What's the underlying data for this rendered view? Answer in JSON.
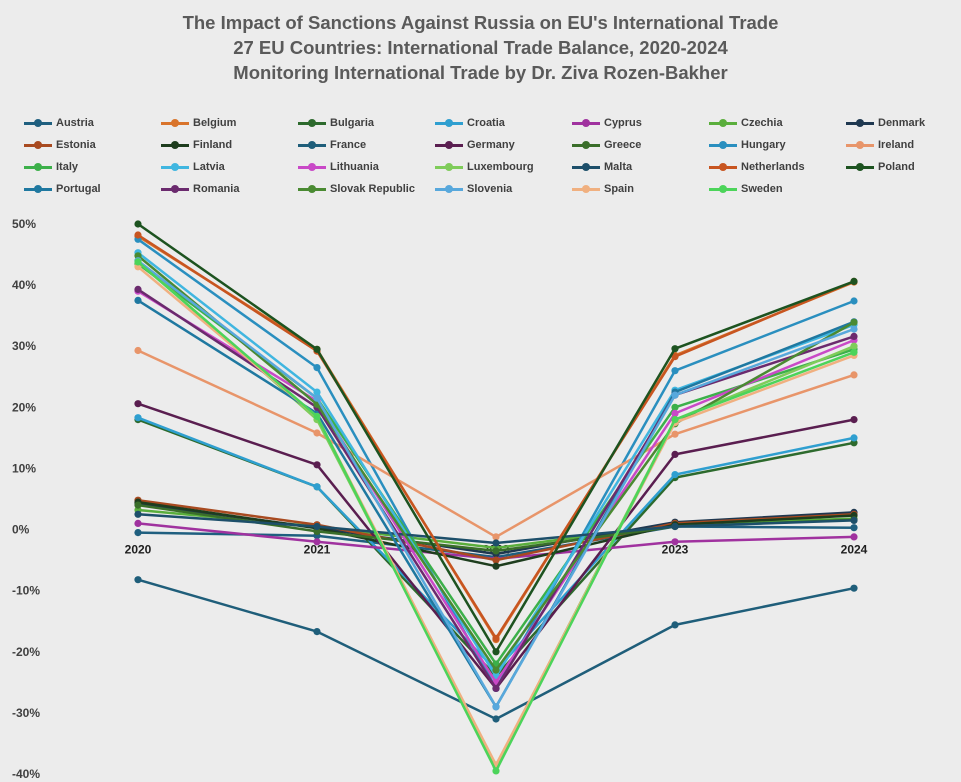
{
  "header": {
    "title_line1": "The Impact of Sanctions Against Russia on EU's International Trade",
    "title_line2": "27 EU Countries: International Trade Balance, 2020-2024",
    "title_line3": "Monitoring International Trade by Dr. Ziva Rozen-Bakher"
  },
  "chart_data": {
    "type": "line",
    "title": "The Impact of Sanctions Against Russia on EU's International Trade",
    "subtitle": "27 EU Countries: International Trade Balance, 2020-2024",
    "caption": "Monitoring International Trade by Dr. Ziva Rozen-Bakher",
    "xlabel": "",
    "ylabel": "",
    "x": [
      "2020",
      "2021",
      "2022",
      "2023",
      "2024"
    ],
    "yticks": [
      "50%",
      "40%",
      "30%",
      "20%",
      "10%",
      "0%",
      "-10%",
      "-20%",
      "-30%",
      "-40%"
    ],
    "ylim": [
      -40,
      50
    ],
    "grid": false,
    "legend_position": "top",
    "series": [
      {
        "name": "Austria",
        "color": "#1f5f7f",
        "values": [
          -0.5,
          -1.0,
          -4.5,
          0.5,
          0.3
        ]
      },
      {
        "name": "Belgium",
        "color": "#d9742b",
        "values": [
          48,
          29.5,
          -18,
          28.5,
          40.5
        ]
      },
      {
        "name": "Bulgaria",
        "color": "#2d6a2d",
        "values": [
          18,
          7,
          -24,
          8.5,
          14.2
        ]
      },
      {
        "name": "Croatia",
        "color": "#2f9fd0",
        "values": [
          18.3,
          7,
          -23,
          9,
          15
        ]
      },
      {
        "name": "Cyprus",
        "color": "#a0329f",
        "values": [
          1,
          -2,
          -4.8,
          -2,
          -1.2
        ]
      },
      {
        "name": "Czechia",
        "color": "#5aae3c",
        "values": [
          3.2,
          0.5,
          -3.0,
          0.8,
          1.8
        ]
      },
      {
        "name": "Denmark",
        "color": "#1f3850",
        "values": [
          4.2,
          0.3,
          -4.0,
          1.2,
          2.8
        ]
      },
      {
        "name": "Estonia",
        "color": "#a84a20",
        "values": [
          4.8,
          0.8,
          -5.0,
          1.0,
          2.5
        ]
      },
      {
        "name": "Finland",
        "color": "#1e3d1e",
        "values": [
          4.5,
          0.2,
          -6.0,
          0.8,
          2.3
        ]
      },
      {
        "name": "France",
        "color": "#1f5e7a",
        "values": [
          -8.2,
          -16.7,
          -31,
          -15.6,
          -9.6
        ]
      },
      {
        "name": "Germany",
        "color": "#5a1e50",
        "values": [
          20.6,
          10.6,
          -26,
          12.3,
          18
        ]
      },
      {
        "name": "Greece",
        "color": "#3a6e2a",
        "values": [
          4.0,
          -0.3,
          -3.5,
          0.5,
          1.6
        ]
      },
      {
        "name": "Hungary",
        "color": "#2a8fbf",
        "values": [
          47.5,
          26.5,
          -26,
          26,
          37.4
        ]
      },
      {
        "name": "Ireland",
        "color": "#e8956a",
        "values": [
          29.3,
          15.8,
          -1.2,
          15.6,
          25.3
        ]
      },
      {
        "name": "Italy",
        "color": "#3cb04a",
        "values": [
          43.5,
          21.5,
          -22,
          20,
          29.5
        ]
      },
      {
        "name": "Latvia",
        "color": "#40b6e0",
        "values": [
          45.3,
          22.5,
          -24,
          22.8,
          33.5
        ]
      },
      {
        "name": "Lithuania",
        "color": "#c949c7",
        "values": [
          39,
          21,
          -25,
          19,
          31
        ]
      },
      {
        "name": "Luxembourg",
        "color": "#7fcc5a",
        "values": [
          44,
          18,
          -38.7,
          18,
          30
        ]
      },
      {
        "name": "Malta",
        "color": "#1d4f6a",
        "values": [
          2.5,
          0.5,
          -2.2,
          0.5,
          1.5
        ]
      },
      {
        "name": "Netherlands",
        "color": "#c85520",
        "values": [
          48.2,
          29.2,
          -17.8,
          28.3,
          40.6
        ]
      },
      {
        "name": "Poland",
        "color": "#1d5320",
        "values": [
          50,
          29.5,
          -20,
          29.6,
          40.6
        ]
      },
      {
        "name": "Portugal",
        "color": "#1f78a0",
        "values": [
          37.5,
          19,
          -29,
          22.5,
          34
        ]
      },
      {
        "name": "Romania",
        "color": "#6b2a6e",
        "values": [
          39.3,
          20,
          -26,
          22,
          31.6
        ]
      },
      {
        "name": "Slovak Republic",
        "color": "#4a8a32",
        "values": [
          44.8,
          20.5,
          -23,
          17.3,
          33.9
        ]
      },
      {
        "name": "Slovenia",
        "color": "#58a8dc",
        "values": [
          44,
          21.5,
          -29,
          22,
          32.8
        ]
      },
      {
        "name": "Spain",
        "color": "#f0b080",
        "values": [
          43,
          18.5,
          -38.5,
          17.5,
          28.5
        ]
      },
      {
        "name": "Sweden",
        "color": "#4cd45a",
        "values": [
          43.8,
          18.5,
          -39.5,
          18,
          29
        ]
      }
    ]
  }
}
